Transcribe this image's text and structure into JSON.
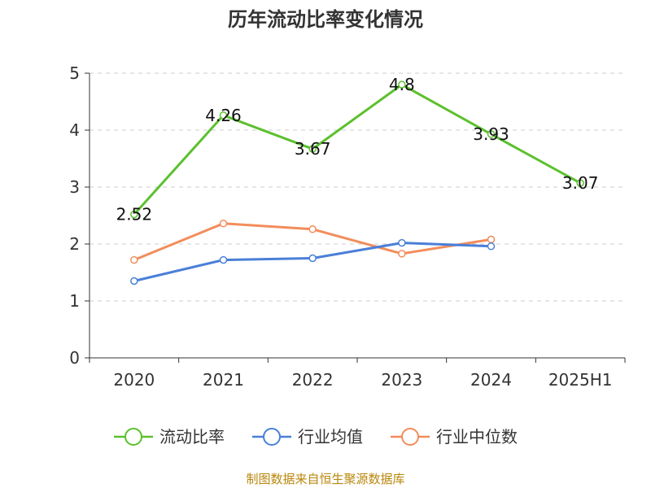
{
  "chart_data": {
    "type": "line",
    "title": "历年流动比率变化情况",
    "categories": [
      "2020",
      "2021",
      "2022",
      "2023",
      "2024",
      "2025H1"
    ],
    "ylim": [
      0,
      5
    ],
    "yticks": [
      0,
      1,
      2,
      3,
      4,
      5
    ],
    "grid": true,
    "legend_position": "bottom",
    "series": [
      {
        "name": "流动比率",
        "color": "#5cc02e",
        "values": [
          2.52,
          4.26,
          3.67,
          4.8,
          3.93,
          3.07
        ],
        "show_labels": true
      },
      {
        "name": "行业均值",
        "color": "#4a7fd8",
        "values": [
          1.35,
          1.72,
          1.75,
          2.02,
          1.96,
          null
        ],
        "show_labels": false
      },
      {
        "name": "行业中位数",
        "color": "#f28d5b",
        "values": [
          1.72,
          2.36,
          2.26,
          1.83,
          2.08,
          null
        ],
        "show_labels": false
      }
    ],
    "source": "制图数据来自恒生聚源数据库"
  }
}
